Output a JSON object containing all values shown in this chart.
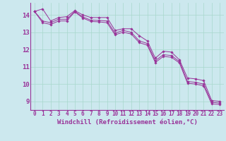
{
  "background_color": "#cce8ee",
  "grid_color": "#a8d8cc",
  "line_color": "#993399",
  "marker_color": "#993399",
  "xlabel": "Windchill (Refroidissement éolien,°C)",
  "xlabel_fontsize": 6.5,
  "xtick_fontsize": 5.5,
  "ytick_fontsize": 6.5,
  "xlim": [
    -0.5,
    23.5
  ],
  "ylim": [
    8.5,
    14.7
  ],
  "yticks": [
    9,
    10,
    11,
    12,
    13,
    14
  ],
  "xticks": [
    0,
    1,
    2,
    3,
    4,
    5,
    6,
    7,
    8,
    9,
    10,
    11,
    12,
    13,
    14,
    15,
    16,
    17,
    18,
    19,
    20,
    21,
    22,
    23
  ],
  "series1": [
    14.2,
    14.35,
    13.65,
    13.85,
    13.9,
    14.25,
    14.0,
    13.85,
    13.85,
    13.85,
    13.1,
    13.2,
    13.2,
    12.8,
    12.5,
    11.5,
    11.9,
    11.85,
    11.4,
    10.35,
    10.3,
    10.2,
    9.05,
    9.0
  ],
  "series2": [
    14.2,
    13.65,
    13.55,
    13.75,
    13.75,
    14.2,
    13.88,
    13.7,
    13.68,
    13.65,
    12.95,
    13.1,
    13.0,
    12.5,
    12.35,
    11.35,
    11.7,
    11.65,
    11.3,
    10.15,
    10.1,
    10.0,
    8.95,
    8.9
  ],
  "series3": [
    14.2,
    13.55,
    13.45,
    13.65,
    13.65,
    14.18,
    13.82,
    13.62,
    13.6,
    13.55,
    12.85,
    13.0,
    12.9,
    12.4,
    12.25,
    11.25,
    11.6,
    11.55,
    11.22,
    10.05,
    10.0,
    9.9,
    8.85,
    8.82
  ],
  "x": [
    0,
    1,
    2,
    3,
    4,
    5,
    6,
    7,
    8,
    9,
    10,
    11,
    12,
    13,
    14,
    15,
    16,
    17,
    18,
    19,
    20,
    21,
    22,
    23
  ]
}
